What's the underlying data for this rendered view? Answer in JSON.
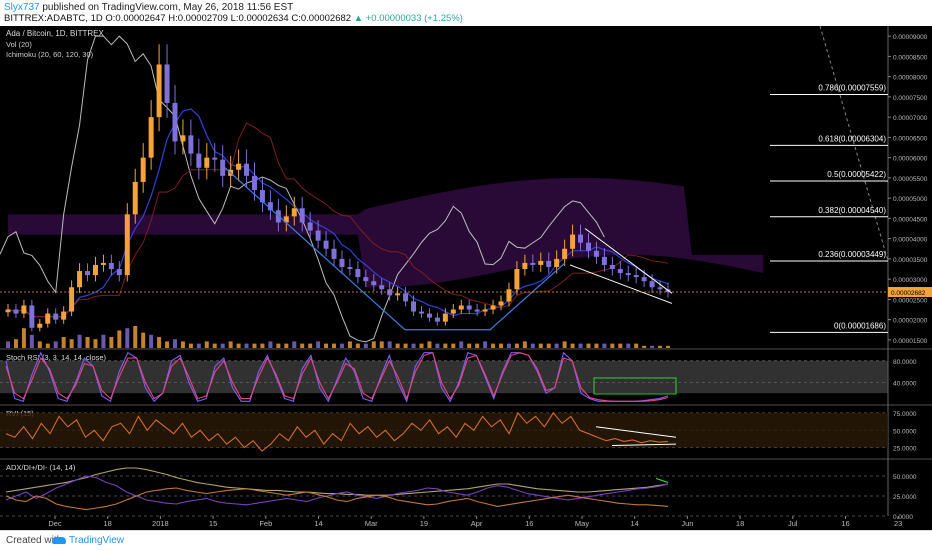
{
  "header": {
    "author": "Slyx737",
    "published": " published on TradingView.com, May 26, 2018 11:56 EST",
    "symbol": "BITTREX:ADABTC, 1D",
    "open_label": "O:",
    "open": "0.00002647",
    "high_label": "H:",
    "high": "0.00002709",
    "low_label": "L:",
    "low": "0.00002634",
    "close_label": "C:",
    "close": "0.00002682",
    "change": "▲ +0.00000033 (+1.25%)"
  },
  "footer": {
    "created_with": "Created with",
    "brand": "TradingView"
  },
  "chart_data": [
    {
      "type": "line",
      "title": "Ada / Bitcoin, 1D, BITTREX",
      "indicators": [
        "Vol (20)",
        "Ichimoku (20, 60, 120, 30)"
      ],
      "x_ticks": [
        "Dec",
        "18",
        "2018",
        "15",
        "Feb",
        "14",
        "Mar",
        "19",
        "Apr",
        "16",
        "May",
        "14",
        "Jun",
        "18",
        "Jul",
        "16",
        "23"
      ],
      "y_ticks": [
        "0.00009000",
        "0.00008500",
        "0.00008000",
        "0.00007500",
        "0.00007000",
        "0.00006500",
        "0.00006000",
        "0.00005500",
        "0.00005000",
        "0.00004500",
        "0.00004000",
        "0.00003500",
        "0.00003000",
        "0.00002500",
        "0.00002000",
        "0.00001500"
      ],
      "ylim": [
        1.3e-05,
        9.25e-05
      ],
      "last_price": "0.00002682",
      "fib_levels": [
        {
          "label": "0.786(0.00007559)",
          "value": 7.559e-05
        },
        {
          "label": "0.618(0.00006304)",
          "value": 6.304e-05
        },
        {
          "label": "0.5(0.00005422)",
          "value": 5.422e-05
        },
        {
          "label": "0.382(0.00004540)",
          "value": 4.54e-05
        },
        {
          "label": "0.236(0.00003449)",
          "value": 3.449e-05
        },
        {
          "label": "0(0.00001686)",
          "value": 1.686e-05
        }
      ],
      "close_series": [
        2.25e-05,
        2.15e-05,
        2.35e-05,
        1.8e-05,
        1.9e-05,
        2.15e-05,
        2e-05,
        2.2e-05,
        2.8e-05,
        3.2e-05,
        3.1e-05,
        3.35e-05,
        3.4e-05,
        3.25e-05,
        3.1e-05,
        4.6e-05,
        5.4e-05,
        6e-05,
        7e-05,
        8.3e-05,
        7.35e-05,
        6.4e-05,
        6.55e-05,
        6.1e-05,
        5.75e-05,
        6e-05,
        5.95e-05,
        5.55e-05,
        5.7e-05,
        5.85e-05,
        5.55e-05,
        5.2e-05,
        4.9e-05,
        4.7e-05,
        4.4e-05,
        4.55e-05,
        4.75e-05,
        4.4e-05,
        4.2e-05,
        3.95e-05,
        3.75e-05,
        3.5e-05,
        3.3e-05,
        3.25e-05,
        3.05e-05,
        2.95e-05,
        2.85e-05,
        2.75e-05,
        2.6e-05,
        2.65e-05,
        2.45e-05,
        2.2e-05,
        2.15e-05,
        2.05e-05,
        1.95e-05,
        2.15e-05,
        2.25e-05,
        2.35e-05,
        2.25e-05,
        2.2e-05,
        2.25e-05,
        2.35e-05,
        2.45e-05,
        2.75e-05,
        3.25e-05,
        3.4e-05,
        3.35e-05,
        3.45e-05,
        3.3e-05,
        3.5e-05,
        3.75e-05,
        4.1e-05,
        3.9e-05,
        3.7e-05,
        3.55e-05,
        3.35e-05,
        3.25e-05,
        3.15e-05,
        3.1e-05,
        3.05e-05,
        2.95e-05,
        2.8e-05,
        2.75e-05,
        2.682e-05
      ],
      "volume": [
        3,
        4,
        9,
        6,
        3,
        2,
        3,
        5,
        4,
        6,
        5,
        4,
        6,
        5,
        8,
        9,
        10,
        7,
        6,
        5,
        3,
        4,
        3,
        2,
        2,
        3,
        2,
        2,
        3,
        2,
        2,
        2,
        2,
        3,
        2,
        2,
        3,
        2,
        2,
        3,
        2,
        2,
        2,
        3,
        2,
        2,
        3,
        3,
        3,
        2,
        2,
        2,
        2,
        3,
        2,
        2,
        2,
        3,
        2,
        2,
        3,
        2,
        2,
        2,
        2,
        3,
        2,
        2,
        2,
        2,
        3,
        2,
        2,
        2,
        2,
        2,
        2,
        2,
        2,
        2,
        1,
        1,
        1,
        1
      ]
    },
    {
      "type": "line",
      "title": "Stoch RSI (3, 3, 14, 14, close)",
      "y_ticks": [
        "80.0000",
        "40.0000"
      ],
      "ylim": [
        0,
        100
      ],
      "series": [
        {
          "name": "%K",
          "values": [
            80,
            10,
            5,
            55,
            95,
            60,
            10,
            5,
            40,
            85,
            70,
            15,
            5,
            60,
            95,
            85,
            30,
            5,
            20,
            80,
            90,
            40,
            5,
            10,
            70,
            85,
            30,
            5,
            5,
            60,
            90,
            50,
            10,
            5,
            65,
            90,
            30,
            5,
            45,
            85,
            60,
            10,
            5,
            50,
            90,
            40,
            5,
            70,
            95,
            95,
            30,
            5,
            40,
            95,
            90,
            50,
            10,
            60,
            95,
            95,
            90,
            60,
            20,
            30,
            95,
            80,
            20,
            10,
            5,
            5,
            5,
            5,
            5,
            6,
            8,
            10,
            15
          ]
        },
        {
          "name": "%D",
          "values": [
            70,
            20,
            10,
            45,
            85,
            65,
            20,
            10,
            35,
            75,
            70,
            25,
            10,
            50,
            85,
            85,
            40,
            10,
            20,
            70,
            85,
            50,
            10,
            15,
            60,
            80,
            40,
            10,
            10,
            50,
            85,
            55,
            15,
            10,
            55,
            85,
            40,
            10,
            40,
            75,
            65,
            20,
            10,
            45,
            80,
            50,
            10,
            60,
            90,
            95,
            40,
            10,
            35,
            85,
            90,
            55,
            15,
            55,
            90,
            95,
            90,
            65,
            25,
            30,
            85,
            80,
            30,
            12,
            8,
            6,
            5,
            5,
            5,
            5,
            6,
            8,
            12
          ]
        }
      ]
    },
    {
      "type": "line",
      "title": "RVI (15)",
      "y_ticks": [
        "75.0000",
        "50.0000",
        "25.0000"
      ],
      "ylim": [
        10,
        85
      ],
      "series": [
        {
          "name": "RVI",
          "values": [
            45,
            40,
            55,
            38,
            60,
            45,
            70,
            55,
            65,
            40,
            50,
            35,
            55,
            60,
            45,
            70,
            50,
            65,
            55,
            45,
            60,
            40,
            50,
            35,
            45,
            30,
            40,
            25,
            35,
            20,
            30,
            45,
            35,
            55,
            40,
            50,
            30,
            45,
            35,
            60,
            45,
            55,
            40,
            50,
            35,
            45,
            60,
            50,
            65,
            45,
            55,
            40,
            60,
            50,
            70,
            55,
            65,
            45,
            75,
            60,
            70,
            55,
            75,
            60,
            70,
            50,
            45,
            40,
            35,
            38,
            34,
            36,
            32,
            35,
            33,
            34
          ]
        }
      ]
    },
    {
      "type": "line",
      "title": "ADX/DI+/DI- (14, 14)",
      "y_ticks": [
        "50.0000",
        "25.0000",
        "0.0000"
      ],
      "ylim": [
        0,
        70
      ],
      "series": [
        {
          "name": "ADX",
          "values": [
            30,
            32,
            34,
            36,
            38,
            40,
            42,
            45,
            48,
            52,
            55,
            58,
            60,
            60,
            58,
            55,
            52,
            48,
            45,
            42,
            40,
            38,
            36,
            35,
            34,
            33,
            32,
            32,
            31,
            30,
            30,
            29,
            28,
            28,
            27,
            27,
            26,
            26,
            26,
            27,
            28,
            29,
            30,
            31,
            32,
            33,
            34,
            36,
            38,
            40,
            40,
            38,
            36,
            34,
            33,
            32,
            31,
            30,
            30,
            31,
            32,
            33,
            34,
            35,
            36,
            38,
            40
          ]
        },
        {
          "name": "DI+",
          "values": [
            20,
            25,
            30,
            22,
            28,
            35,
            40,
            45,
            50,
            48,
            42,
            38,
            30,
            25,
            20,
            18,
            16,
            15,
            18,
            20,
            22,
            18,
            16,
            15,
            14,
            16,
            18,
            20,
            22,
            20,
            18,
            22,
            25,
            28,
            30,
            26,
            24,
            22,
            25,
            28,
            30,
            32,
            35,
            34,
            30,
            28,
            26,
            30,
            35,
            38,
            36,
            32,
            28,
            26,
            24,
            22,
            20,
            22,
            24,
            26,
            28,
            30,
            32,
            34,
            35,
            37,
            40
          ]
        },
        {
          "name": "DI-",
          "values": [
            25,
            20,
            18,
            25,
            22,
            15,
            12,
            10,
            8,
            10,
            12,
            15,
            20,
            25,
            30,
            32,
            34,
            35,
            32,
            30,
            28,
            30,
            32,
            33,
            34,
            32,
            30,
            28,
            26,
            28,
            30,
            27,
            24,
            20,
            18,
            22,
            24,
            26,
            24,
            20,
            18,
            16,
            14,
            15,
            18,
            20,
            22,
            18,
            15,
            12,
            14,
            16,
            18,
            20,
            22,
            24,
            26,
            24,
            22,
            20,
            18,
            16,
            15,
            14,
            14,
            13,
            12
          ]
        }
      ]
    }
  ],
  "colors": {
    "background": "#000000",
    "up": "#f2a33a",
    "down": "#7e71d8",
    "ichimoku_conv": "#2f43d6",
    "ichimoku_lag": "#bdbdbd",
    "ichimoku_base": "#7c1f1f",
    "cloud": "#4a1265",
    "stoch_k": "#7b5ff5",
    "stoch_d": "#e8467e",
    "rvi": "#d06c2e",
    "adx": "#b1a56a",
    "di_plus": "#7a3fc0",
    "di_minus": "#c07a3a",
    "trend": "#3b7fe0",
    "fib": "#ffffff",
    "last_price": "#f2a33a"
  }
}
